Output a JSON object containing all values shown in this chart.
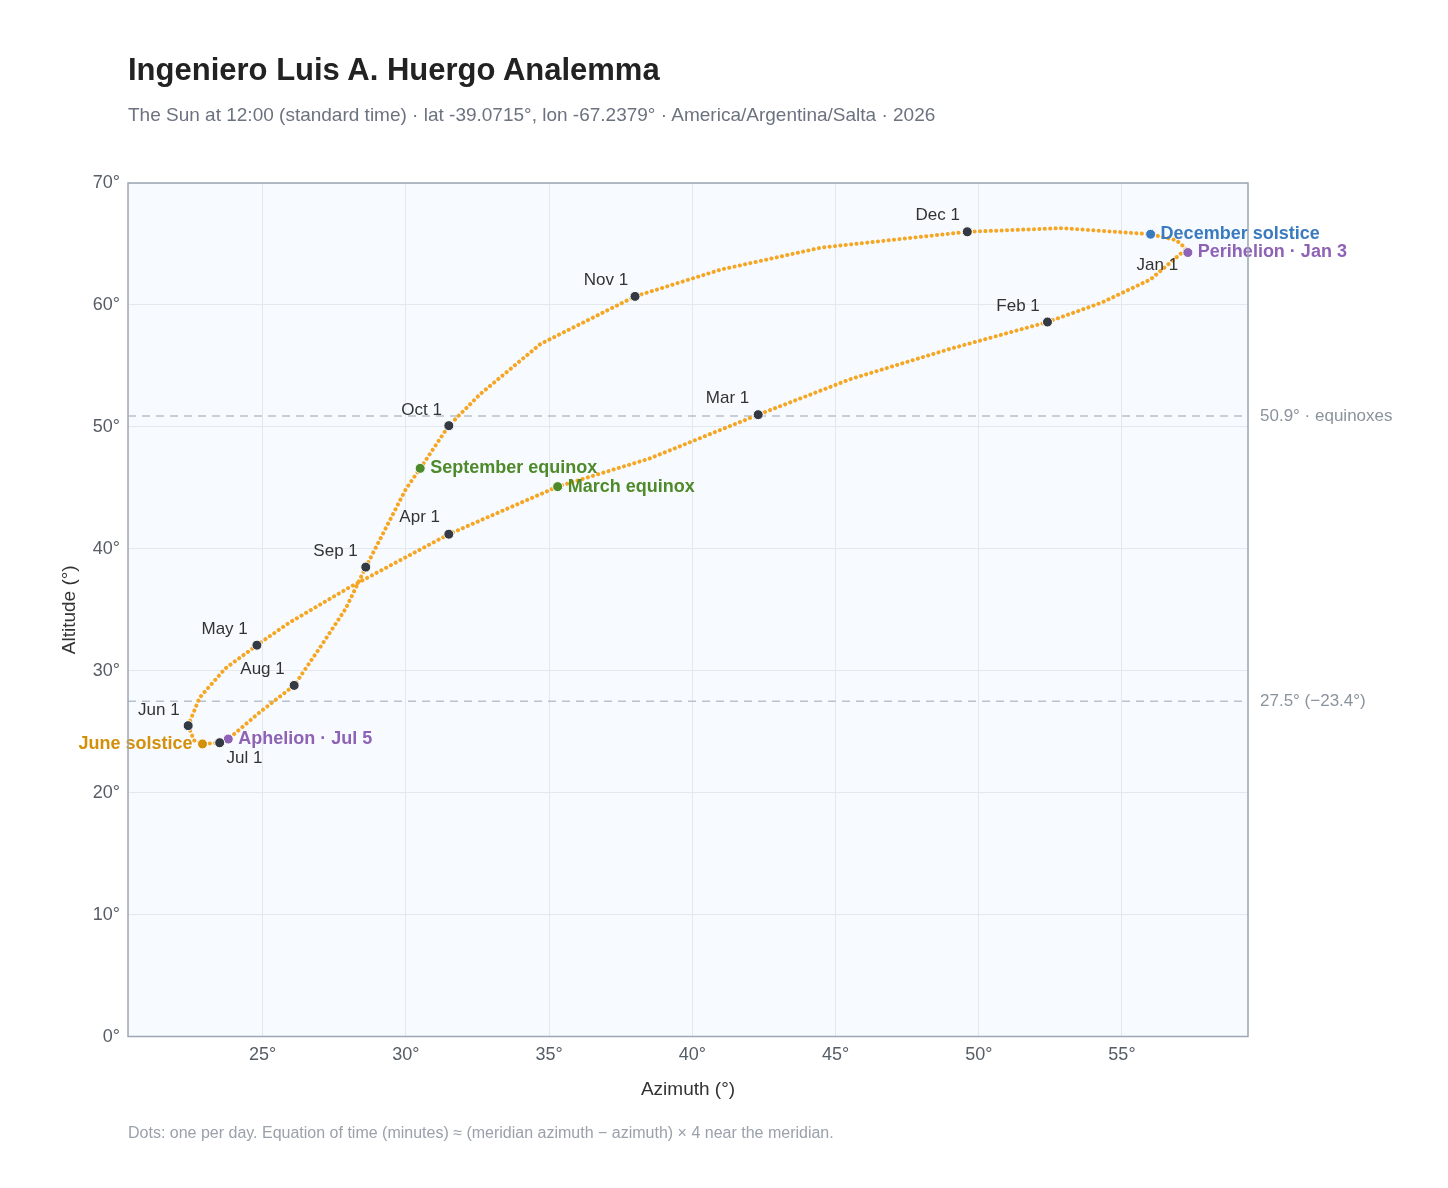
{
  "chart_data": {
    "type": "scatter",
    "title": "Ingeniero Luis A. Huergo Analemma",
    "subtitle": "The Sun at 12:00 (standard time) · lat -39.0715°, lon -67.2379° · America/Argentina/Salta · 2026",
    "xlabel": "Azimuth (°)",
    "ylabel": "Altitude (°)",
    "xlim": [
      20.3,
      59.4
    ],
    "ylim": [
      0,
      70
    ],
    "xticks": [
      {
        "value": 25,
        "label": "25°"
      },
      {
        "value": 30,
        "label": "30°"
      },
      {
        "value": 35,
        "label": "35°"
      },
      {
        "value": 40,
        "label": "40°"
      },
      {
        "value": 45,
        "label": "45°"
      },
      {
        "value": 50,
        "label": "50°"
      },
      {
        "value": 55,
        "label": "55°"
      }
    ],
    "yticks": [
      {
        "value": 0,
        "label": "0°"
      },
      {
        "value": 10,
        "label": "10°"
      },
      {
        "value": 20,
        "label": "20°"
      },
      {
        "value": 30,
        "label": "30°"
      },
      {
        "value": 40,
        "label": "40°"
      },
      {
        "value": 50,
        "label": "50°"
      },
      {
        "value": 60,
        "label": "60°"
      },
      {
        "value": 70,
        "label": "70°"
      }
    ],
    "grid": true,
    "series": [
      {
        "type": "line",
        "color": "#f5a623",
        "marker": "none",
        "line_style": "dotted",
        "x": [
          57.2,
          56.0,
          54.3,
          52.4,
          49.0,
          45.5,
          42.3,
          38.5,
          35.3,
          31.5,
          28.0,
          25.9,
          24.8,
          23.7,
          22.8,
          22.4,
          22.6,
          22.9,
          23.5,
          23.8,
          24.9,
          26.1,
          27.0,
          27.9,
          28.6,
          29.3,
          30.0,
          30.5,
          31.5,
          32.6,
          34.7,
          38.0,
          41.0,
          44.5,
          49.6,
          52.9,
          56.0,
          56.9,
          57.3
        ],
        "values": [
          64.5,
          62.1,
          60.2,
          58.6,
          56.4,
          53.9,
          51.0,
          47.4,
          45.1,
          41.2,
          36.8,
          33.9,
          32.1,
          30.2,
          27.8,
          25.5,
          24.3,
          24.0,
          24.1,
          24.4,
          26.6,
          28.8,
          31.9,
          35.1,
          38.5,
          41.7,
          44.9,
          46.6,
          50.1,
          52.7,
          56.8,
          60.7,
          62.9,
          64.7,
          66.0,
          66.3,
          65.8,
          65.3,
          64.5
        ]
      },
      {
        "type": "scatter",
        "color": "#333a44",
        "marker": "circle",
        "x": [
          52.4,
          42.3,
          31.5,
          24.8,
          22.4,
          23.5,
          26.1,
          28.6,
          31.5,
          38.0,
          49.6
        ],
        "values": [
          58.6,
          51.0,
          41.2,
          32.1,
          25.5,
          24.1,
          28.8,
          38.5,
          50.1,
          60.7,
          66.0
        ]
      },
      {
        "type": "scatter",
        "name": "December solstice",
        "color": "#3a7abf",
        "marker": "circle",
        "x": [
          56.0
        ],
        "values": [
          65.8
        ]
      },
      {
        "type": "scatter",
        "name": "Perihelion · Jan 3",
        "color": "#8e63b5",
        "marker": "circle",
        "x": [
          57.3
        ],
        "values": [
          64.3
        ]
      },
      {
        "type": "scatter",
        "name": "September equinox",
        "color": "#4f8a2a",
        "marker": "circle",
        "x": [
          30.5
        ],
        "values": [
          46.6
        ]
      },
      {
        "type": "scatter",
        "name": "March equinox",
        "color": "#4f8a2a",
        "marker": "circle",
        "x": [
          35.3
        ],
        "values": [
          45.1
        ]
      },
      {
        "type": "scatter",
        "name": "June solstice",
        "color": "#d4900a",
        "marker": "circle",
        "x": [
          22.9
        ],
        "values": [
          24.0
        ]
      },
      {
        "type": "scatter",
        "name": "Aphelion · Jul 5",
        "color": "#8e63b5",
        "marker": "circle",
        "x": [
          23.8
        ],
        "values": [
          24.4
        ]
      }
    ],
    "ref_lines": [
      {
        "axis": "y",
        "value": 50.9,
        "label": "50.9° · equinoxes",
        "color": "#b8c2cc",
        "line_style": "dashed"
      },
      {
        "axis": "y",
        "value": 27.5,
        "label": "27.5° (−23.4°)",
        "color": "#b8c2cc",
        "line_style": "dashed"
      }
    ],
    "annotations": [
      {
        "text": "Jan 1",
        "x": 57.24,
        "y": 64.53
      },
      {
        "text": "Feb 1",
        "x": 52.41,
        "y": 58.56
      },
      {
        "text": "Mar 1",
        "x": 42.27,
        "y": 51.05
      },
      {
        "text": "Apr 1",
        "x": 31.47,
        "y": 41.25
      },
      {
        "text": "May 1",
        "x": 24.76,
        "y": 32.1
      },
      {
        "text": "Jun 1",
        "x": 22.38,
        "y": 25.48
      },
      {
        "text": "Jul 1",
        "x": 23.46,
        "y": 24.1
      },
      {
        "text": "Aug 1",
        "x": 26.05,
        "y": 28.83
      },
      {
        "text": "Sep 1",
        "x": 28.6,
        "y": 38.47
      },
      {
        "text": "Oct 1",
        "x": 31.54,
        "y": 50.07
      },
      {
        "text": "Nov 1",
        "x": 38.04,
        "y": 60.69
      },
      {
        "text": "Dec 1",
        "x": 49.62,
        "y": 66.0
      },
      "Dots: one per day. Equation of time (minutes) ≈ (meridian azimuth − azimuth) × 4 near the meridian."
    ]
  }
}
